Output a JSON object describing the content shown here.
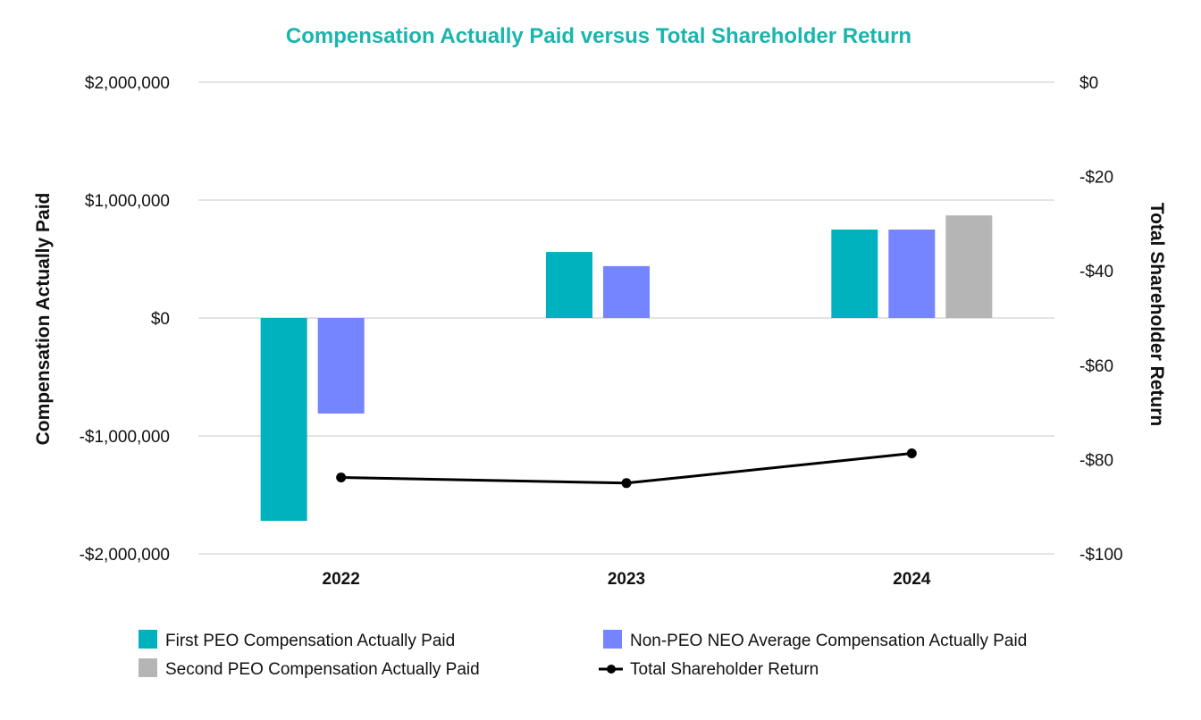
{
  "chart_data": {
    "type": "bar",
    "title": "Compensation Actually Paid versus Total Shareholder Return",
    "categories": [
      "2022",
      "2023",
      "2024"
    ],
    "ylabel": "Compensation Actually Paid",
    "y2label": "Total Shareholder Return",
    "ylim": [
      -2000000,
      2000000
    ],
    "y2lim": [
      -100,
      0
    ],
    "yticks": [
      "$2,000,000",
      "$1,000,000",
      "$0",
      "-$1,000,000",
      "-$2,000,000"
    ],
    "ytick_values": [
      2000000,
      1000000,
      0,
      -1000000,
      -2000000
    ],
    "y2ticks": [
      "$0",
      "-$20",
      "-$40",
      "-$60",
      "-$80",
      "-$100"
    ],
    "y2tick_values": [
      0,
      -20,
      -40,
      -60,
      -80,
      -100
    ],
    "grid": true,
    "legend_position": "bottom",
    "series": [
      {
        "name": "First PEO Compensation Actually Paid",
        "type": "bar",
        "color": "#00B2BD",
        "values": [
          -1720000,
          560000,
          750000
        ]
      },
      {
        "name": "Non-PEO NEO Average Compensation Actually Paid",
        "type": "bar",
        "color": "#7584FF",
        "values": [
          -810000,
          440000,
          750000
        ]
      },
      {
        "name": "Second PEO Compensation Actually Paid",
        "type": "bar",
        "color": "#B5B5B5",
        "values": [
          null,
          null,
          870000
        ]
      },
      {
        "name": "Total Shareholder Return",
        "type": "line",
        "axis": "right",
        "color": "#000000",
        "values": [
          -83.8,
          -85,
          -78.7
        ]
      }
    ],
    "title_color": "#1AB5AC",
    "grid_color": "#E3E3E3"
  }
}
